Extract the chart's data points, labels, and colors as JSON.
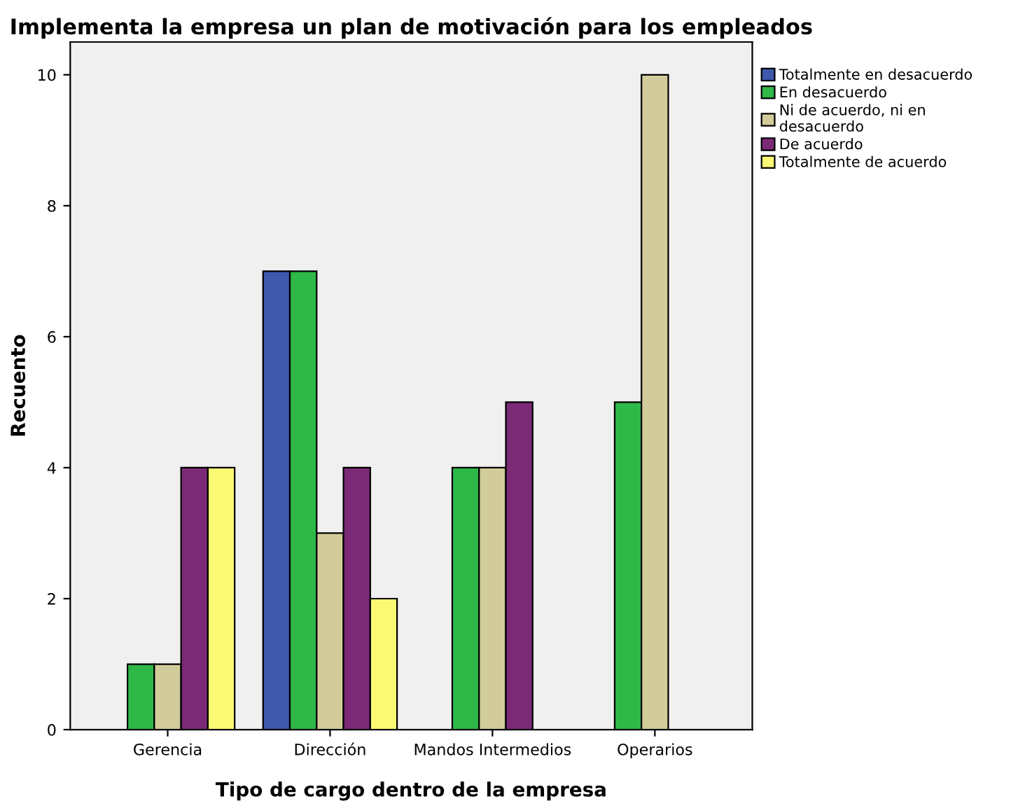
{
  "chart_data": {
    "type": "bar",
    "title": "Implementa la empresa un plan de motivación para los empleados",
    "xlabel": "Tipo de cargo dentro de la empresa",
    "ylabel": "Recuento",
    "categories": [
      "Gerencia",
      "Dirección",
      "Mandos Intermedios",
      "Operarios"
    ],
    "series": [
      {
        "name": "Totalmente en desacuerdo",
        "color": "#3e58ac",
        "values": [
          null,
          7,
          null,
          null
        ]
      },
      {
        "name": "En desacuerdo",
        "color": "#2eb848",
        "values": [
          1,
          7,
          4,
          5
        ]
      },
      {
        "name": "Ni de acuerdo, ni en\ndesacuerdo",
        "color": "#d2cc9a",
        "values": [
          1,
          3,
          4,
          10
        ]
      },
      {
        "name": "De acuerdo",
        "color": "#7b2a76",
        "values": [
          4,
          4,
          5,
          null
        ]
      },
      {
        "name": "Totalmente de acuerdo",
        "color": "#fbf873",
        "values": [
          4,
          2,
          null,
          null
        ]
      }
    ],
    "ylim": [
      0,
      10.5
    ],
    "yticks": [
      0,
      2,
      4,
      6,
      8,
      10
    ],
    "grid": false,
    "legend": "top right"
  }
}
